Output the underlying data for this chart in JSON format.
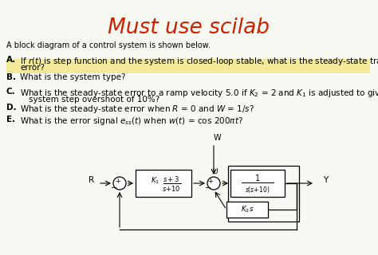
{
  "title": "Must use scilab",
  "title_color": "#cc2200",
  "bg_color": "#f8f8f3",
  "intro": "A block diagram of a control system is shown below.",
  "highlight_color": "#f0e060",
  "highlight_alpha": 0.6,
  "questions": [
    {
      "label": "A.",
      "text": "If r(t) is step function and the system is closed-loop stable, what is the steady-state tracking\n       error?",
      "highlight": true
    },
    {
      "label": "B.",
      "text": "What is the system type?",
      "highlight": false
    },
    {
      "label": "C.",
      "text": "What is the steady-state error to a ramp velocity 5.0 if K_2 = 2 and K_1 is adjusted to give a\n       system step overshoot of 10%?",
      "highlight": false
    },
    {
      "label": "D.",
      "text": "What is the steady-state error when R = 0 and W = 1/s?",
      "highlight": false
    },
    {
      "label": "E.",
      "text": "What is the error signal e_ss(t) when w(t) = cos 200pi*t?",
      "highlight": false
    }
  ]
}
